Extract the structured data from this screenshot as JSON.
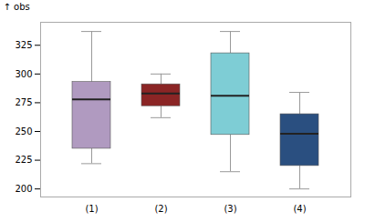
{
  "chart_data": {
    "type": "box",
    "ylabel": "obs",
    "categories": [
      "(1)",
      "(2)",
      "(3)",
      "(4)"
    ],
    "q1": [
      235,
      272,
      247,
      220
    ],
    "median": [
      278,
      283,
      281,
      248
    ],
    "q3": [
      293,
      291,
      318,
      265
    ],
    "whisker_low": [
      222,
      262,
      215,
      200
    ],
    "whisker_high": [
      337,
      300,
      337,
      284
    ],
    "colors": [
      "#b09ac0",
      "#8b2525",
      "#7ecdd5",
      "#2a4f80"
    ],
    "ylim": [
      193,
      345
    ],
    "yticks": [
      200,
      225,
      250,
      275,
      300,
      325
    ],
    "grid": false
  }
}
